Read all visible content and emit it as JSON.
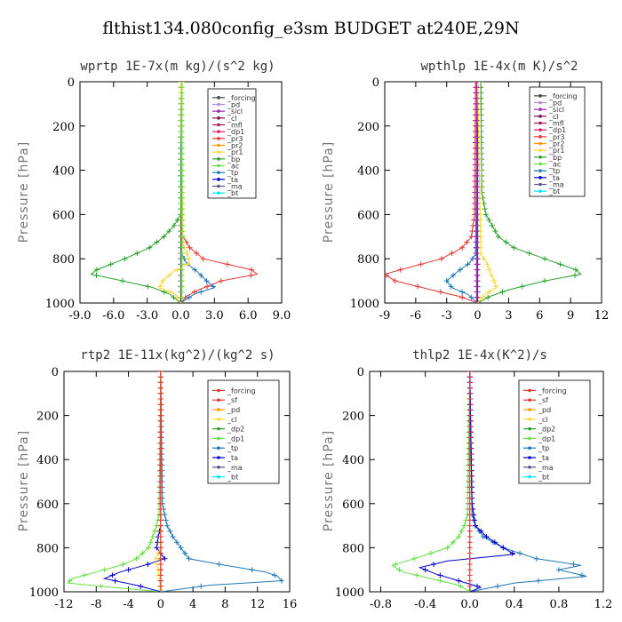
{
  "title": "flthist134.080config_e3sm  BUDGET at240E,29N",
  "chart_data": [
    {
      "type": "line",
      "title": "wprtp  1E-7x(m kg)/(s^2 kg)",
      "ylabel": "Pressure [hPa]",
      "xlim": [
        -9,
        9
      ],
      "ylim": [
        1000,
        0
      ],
      "xticks": [
        "-9.0",
        "-6.0",
        "-3.0",
        "0.0",
        "3.0",
        "6.0",
        "9.0"
      ],
      "xtick_values": [
        -9,
        -6,
        -3,
        0,
        3,
        6,
        9
      ],
      "yticks": [
        "0",
        "200",
        "400",
        "600",
        "800",
        "1000"
      ],
      "ytick_values": [
        0,
        200,
        400,
        600,
        800,
        1000
      ],
      "legend": [
        "_forcing",
        "_pd",
        "_sicl",
        "_cl",
        "_mfl",
        "_dp1",
        "_pr3",
        "_pr2",
        "_pr1",
        "_bp",
        "_ac",
        "_tp",
        "_ta",
        "_ma",
        "_bt"
      ],
      "legend_colors": [
        "#444444",
        "#b088e0",
        "#9c27b0",
        "#880e4f",
        "#ad1457",
        "#d81b60",
        "#e53935",
        "#ff9800",
        "#fdd835",
        "#2ca02c",
        "#66dd44",
        "#1f77b4",
        "#0000cc",
        "#555588",
        "#00e5ff"
      ],
      "series": [
        {
          "color": "#444444",
          "y": [
            0,
            100,
            200,
            300,
            400,
            500,
            600,
            700,
            800,
            900,
            1000
          ],
          "x": [
            0,
            0,
            0,
            0,
            0,
            0,
            0,
            0,
            0,
            0,
            0
          ]
        },
        {
          "color": "#e53935",
          "y": [
            0,
            600,
            700,
            750,
            800,
            850,
            870,
            900,
            940,
            970,
            1000
          ],
          "x": [
            0,
            0,
            0.2,
            0.8,
            2.0,
            6.3,
            6.8,
            3.6,
            1.6,
            0.5,
            0
          ]
        },
        {
          "color": "#2ca02c",
          "y": [
            0,
            600,
            650,
            700,
            750,
            800,
            850,
            870,
            900,
            930,
            960,
            1000
          ],
          "x": [
            0,
            0,
            -0.6,
            -1.5,
            -2.8,
            -5.0,
            -7.5,
            -8.0,
            -5.2,
            -2.5,
            -1.0,
            0
          ]
        },
        {
          "color": "#1f77b4",
          "y": [
            0,
            780,
            820,
            860,
            900,
            930,
            960,
            1000
          ],
          "x": [
            0,
            0.1,
            0.5,
            1.5,
            2.3,
            3.0,
            1.2,
            0
          ]
        },
        {
          "color": "#fdd835",
          "y": [
            0,
            740,
            780,
            820,
            860,
            900,
            930,
            960,
            1000
          ],
          "x": [
            0,
            0.2,
            0.6,
            0.8,
            -0.7,
            -1.6,
            -1.9,
            -0.5,
            0
          ]
        },
        {
          "color": "#66dd44",
          "y": [
            0,
            1000
          ],
          "x": [
            0.1,
            0.1
          ]
        }
      ]
    },
    {
      "type": "line",
      "title": "wpthlp  1E-4x(m K)/s^2",
      "ylabel": "Pressure [hPa]",
      "xlim": [
        -9,
        12
      ],
      "ylim": [
        1000,
        0
      ],
      "xticks": [
        "-9",
        "-6",
        "-3",
        "0",
        "3",
        "6",
        "9",
        "12"
      ],
      "xtick_values": [
        -9,
        -6,
        -3,
        0,
        3,
        6,
        9,
        12
      ],
      "yticks": [
        "0",
        "200",
        "400",
        "600",
        "800",
        "1000"
      ],
      "ytick_values": [
        0,
        200,
        400,
        600,
        800,
        1000
      ],
      "legend": [
        "_forcing",
        "_pd",
        "_sicl",
        "_cl",
        "_mfl",
        "_dp1",
        "_pr3",
        "_pr2",
        "_pr1",
        "_bp",
        "_ac",
        "_tp",
        "_ta",
        "_ma",
        "_bt"
      ],
      "legend_colors": [
        "#444444",
        "#b088e0",
        "#9c27b0",
        "#880e4f",
        "#ad1457",
        "#d81b60",
        "#e53935",
        "#ff9800",
        "#fdd835",
        "#2ca02c",
        "#66dd44",
        "#1f77b4",
        "#0000cc",
        "#555588",
        "#00e5ff"
      ],
      "series": [
        {
          "color": "#444444",
          "y": [
            0,
            100,
            200,
            300,
            400,
            500,
            600,
            700,
            800,
            900,
            1000
          ],
          "x": [
            0,
            0,
            0,
            0,
            0,
            0,
            0,
            0,
            0,
            0,
            0
          ]
        },
        {
          "color": "#2ca02c",
          "y": [
            0,
            500,
            600,
            700,
            750,
            800,
            850,
            870,
            900,
            940,
            970,
            1000
          ],
          "x": [
            0.3,
            0.4,
            0.8,
            2.0,
            3.5,
            6.5,
            9.5,
            10.0,
            6.5,
            3.0,
            1.2,
            0
          ]
        },
        {
          "color": "#e53935",
          "y": [
            0,
            600,
            700,
            750,
            800,
            850,
            870,
            900,
            940,
            970,
            1000
          ],
          "x": [
            -0.2,
            -0.3,
            -0.6,
            -1.5,
            -3.5,
            -7.5,
            -9.0,
            -8.0,
            -4.5,
            -1.8,
            0
          ]
        },
        {
          "color": "#1f77b4",
          "y": [
            0,
            780,
            820,
            860,
            900,
            930,
            960,
            1000
          ],
          "x": [
            0,
            -0.2,
            -0.8,
            -2.0,
            -3.0,
            -2.5,
            -1.0,
            0
          ]
        },
        {
          "color": "#fdd835",
          "y": [
            0,
            780,
            820,
            860,
            900,
            930,
            960,
            1000
          ],
          "x": [
            0,
            0.3,
            0.9,
            1.2,
            1.6,
            1.8,
            0.8,
            0
          ]
        },
        {
          "color": "#9c27b0",
          "y": [
            0,
            1000
          ],
          "x": [
            -0.1,
            -0.1
          ]
        }
      ]
    },
    {
      "type": "line",
      "title": "rtp2  1E-11x(kg^2)/(kg^2 s)",
      "ylabel": "Pressure [hPa]",
      "xlim": [
        -12,
        16
      ],
      "ylim": [
        1000,
        0
      ],
      "xticks": [
        "-12",
        "-8",
        "-4",
        "0",
        "4",
        "8",
        "12",
        "16"
      ],
      "xtick_values": [
        -12,
        -8,
        -4,
        0,
        4,
        8,
        12,
        16
      ],
      "yticks": [
        "0",
        "200",
        "400",
        "600",
        "800",
        "1000"
      ],
      "ytick_values": [
        0,
        200,
        400,
        600,
        800,
        1000
      ],
      "legend": [
        "_forcing",
        "_sf",
        "_pd",
        "_cl",
        "_dp2",
        "_dp1",
        "_tp",
        "_ta",
        "_ma",
        "_bt"
      ],
      "legend_colors": [
        "#e53935",
        "#e53935",
        "#ff9800",
        "#fdd835",
        "#2ca02c",
        "#66dd44",
        "#1f77b4",
        "#0000cc",
        "#555588",
        "#00e5ff"
      ],
      "series": [
        {
          "color": "#66dd44",
          "y": [
            0,
            650,
            700,
            750,
            800,
            850,
            880,
            910,
            940,
            960,
            980,
            1000
          ],
          "x": [
            0,
            -0.2,
            -0.5,
            -1.0,
            -1.5,
            -3.0,
            -5.0,
            -8.0,
            -11.0,
            -11.5,
            -6.0,
            0
          ]
        },
        {
          "color": "#1f77b4",
          "y": [
            0,
            600,
            700,
            750,
            800,
            850,
            880,
            910,
            930,
            950,
            970,
            1000
          ],
          "x": [
            0,
            0.2,
            0.8,
            1.5,
            2.5,
            3.5,
            8.0,
            13.0,
            14.5,
            15.0,
            6.0,
            0
          ]
        },
        {
          "color": "#0000cc",
          "y": [
            0,
            700,
            750,
            800,
            850,
            880,
            910,
            940,
            970,
            1000
          ],
          "x": [
            0,
            0,
            -0.3,
            -0.5,
            0.5,
            -2.0,
            -5.0,
            -7.0,
            -3.0,
            0
          ]
        },
        {
          "color": "#2ca02c",
          "y": [
            0,
            1000
          ],
          "x": [
            0,
            0
          ]
        },
        {
          "color": "#fdd835",
          "y": [
            0,
            800,
            850,
            900,
            1000
          ],
          "x": [
            0,
            0,
            -0.6,
            -0.3,
            0
          ]
        },
        {
          "color": "#e53935",
          "y": [
            0,
            100,
            200,
            300,
            400,
            500,
            600,
            700,
            800,
            900,
            1000
          ],
          "x": [
            0,
            0,
            0,
            0,
            0,
            0,
            0,
            0,
            0,
            0,
            0
          ]
        }
      ]
    },
    {
      "type": "line",
      "title": "thlp2  1E-4x(K^2)/s",
      "ylabel": "Pressure [hPa]",
      "xlim": [
        -0.9,
        1.2
      ],
      "ylim": [
        1000,
        0
      ],
      "xticks": [
        "-0.8",
        "-0.4",
        "0.0",
        "0.4",
        "0.8",
        "1.2"
      ],
      "xtick_values": [
        -0.8,
        -0.4,
        0,
        0.4,
        0.8,
        1.2
      ],
      "yticks": [
        "0",
        "200",
        "400",
        "600",
        "800",
        "1000"
      ],
      "ytick_values": [
        0,
        200,
        400,
        600,
        800,
        1000
      ],
      "legend": [
        "_forcing",
        "_sf",
        "_pd",
        "_cl",
        "_dp2",
        "_dp1",
        "_tp",
        "_ta",
        "_ma",
        "_bt"
      ],
      "legend_colors": [
        "#e53935",
        "#e53935",
        "#ff9800",
        "#fdd835",
        "#2ca02c",
        "#66dd44",
        "#1f77b4",
        "#0000cc",
        "#555588",
        "#00e5ff"
      ],
      "series": [
        {
          "color": "#66dd44",
          "y": [
            0,
            650,
            700,
            750,
            800,
            850,
            880,
            910,
            940,
            970,
            1000
          ],
          "x": [
            0,
            -0.02,
            -0.05,
            -0.1,
            -0.2,
            -0.5,
            -0.7,
            -0.6,
            -0.35,
            -0.1,
            0
          ]
        },
        {
          "color": "#1f77b4",
          "y": [
            0,
            650,
            700,
            750,
            800,
            850,
            880,
            900,
            930,
            960,
            1000
          ],
          "x": [
            0,
            0.02,
            0.05,
            0.12,
            0.3,
            0.6,
            1.0,
            0.8,
            1.05,
            0.4,
            0
          ]
        },
        {
          "color": "#0000cc",
          "y": [
            0,
            600,
            700,
            750,
            800,
            830,
            860,
            890,
            920,
            950,
            980,
            1000
          ],
          "x": [
            0,
            0.02,
            0.05,
            0.15,
            0.3,
            0.4,
            -0.2,
            -0.45,
            -0.3,
            -0.1,
            0.1,
            0
          ]
        },
        {
          "color": "#e53935",
          "y": [
            0,
            100,
            200,
            300,
            400,
            500,
            600,
            700,
            800,
            900,
            1000
          ],
          "x": [
            0,
            0,
            0,
            0,
            0,
            0,
            0,
            0,
            0,
            0,
            0
          ]
        }
      ]
    }
  ]
}
